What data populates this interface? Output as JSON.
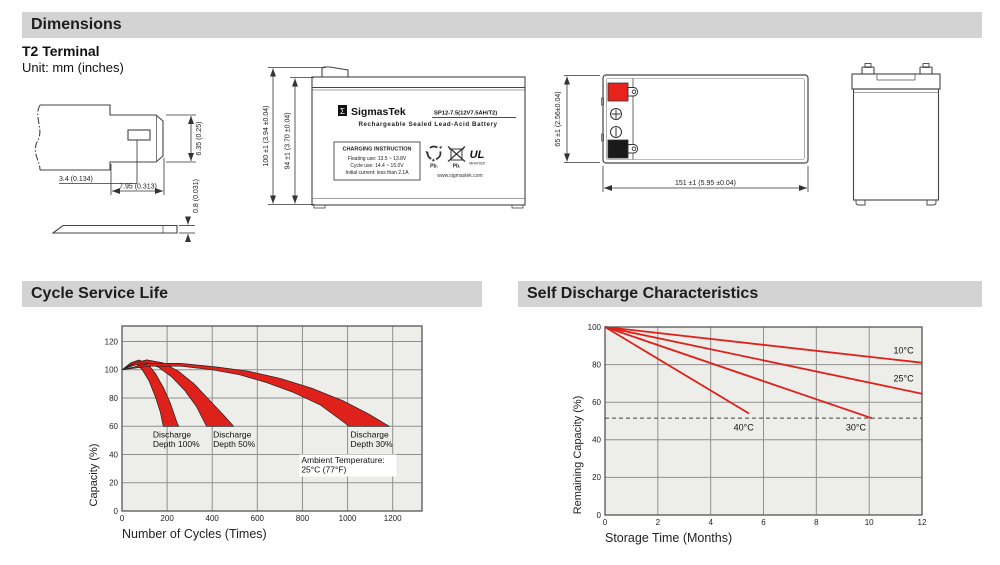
{
  "page": {
    "dimensions_title": "Dimensions",
    "terminal_type": "T2 Terminal",
    "unit_note": "Unit: mm (inches)",
    "cycle_title": "Cycle Service Life",
    "discharge_title": "Self Discharge Characteristics"
  },
  "drawings": {
    "terminal_detail": {
      "dim_height": "6.35 (0.25)",
      "dim_hole": "3.4 (0.134)",
      "dim_width": "7.95 (0.313)",
      "dim_thickness": "0.8 (0.031)"
    },
    "front_view": {
      "dim_height_total": "100 ±1 (3.94 ±0.04)",
      "dim_height_case": "94 ±1 (3.70 ±0.04)",
      "label": {
        "logo_glyph": "Σ",
        "brand": "SigmasTek",
        "model": "SP12-7.5(12V7.5AH/T2)",
        "subtitle": "Rechargeable Sealed Lead-Acid Battery",
        "charging_title": "CHARGING INSTRUCTION",
        "charging_line1": "Floating use: 13.5 ~ 13.8V",
        "charging_line2": "Cycle use: 14.4 ~ 15.0V",
        "charging_line3": "Initial current: less than 2.1A",
        "pb_recycle": "Pb.",
        "pb_bin": "Pb.",
        "ul_mark": "UL",
        "ul_code": "MH47929",
        "website": "www.sigmastek.com"
      }
    },
    "top_view": {
      "dim_depth": "65 ±1 (2.56±0.04)",
      "dim_width": "151 ±1 (5.95 ±0.04)",
      "positive_color": "#e8231c",
      "negative_color": "#1a1a1a"
    }
  },
  "chart_data": [
    {
      "type": "area",
      "title": "Cycle Service Life",
      "xlabel": "Number of Cycles (Times)",
      "ylabel": "Capacity (%)",
      "xlim": [
        0,
        1330
      ],
      "ylim": [
        0,
        131
      ],
      "xticks": [
        0,
        200,
        400,
        600,
        800,
        1000,
        1200
      ],
      "yticks": [
        0,
        20,
        40,
        60,
        80,
        100,
        120
      ],
      "grid": true,
      "legend_position": "none",
      "band_color": "#de211a",
      "series": [
        {
          "name": "Discharge Depth 100%",
          "upper": [
            [
              0,
              100
            ],
            [
              40,
              105
            ],
            [
              75,
              107
            ],
            [
              115,
              104
            ],
            [
              150,
              97
            ],
            [
              185,
              87
            ],
            [
              215,
              76
            ],
            [
              245,
              62
            ],
            [
              252,
              60
            ]
          ],
          "lower": [
            [
              0,
              100
            ],
            [
              30,
              103
            ],
            [
              60,
              104.5
            ],
            [
              90,
              100
            ],
            [
              120,
              92
            ],
            [
              150,
              80
            ],
            [
              170,
              70
            ],
            [
              183,
              60
            ]
          ]
        },
        {
          "name": "Discharge Depth 50%",
          "upper": [
            [
              0,
              100
            ],
            [
              60,
              105
            ],
            [
              110,
              107
            ],
            [
              180,
              105
            ],
            [
              250,
              99
            ],
            [
              320,
              90
            ],
            [
              390,
              78
            ],
            [
              450,
              68
            ],
            [
              495,
              60
            ]
          ],
          "lower": [
            [
              0,
              100
            ],
            [
              50,
              103
            ],
            [
              100,
              105
            ],
            [
              160,
              102
            ],
            [
              220,
              95
            ],
            [
              280,
              85
            ],
            [
              330,
              74
            ],
            [
              365,
              63
            ],
            [
              375,
              60
            ]
          ]
        },
        {
          "name": "Discharge Depth 30%",
          "upper": [
            [
              0,
              100
            ],
            [
              120,
              104.5
            ],
            [
              260,
              104.5
            ],
            [
              420,
              102
            ],
            [
              560,
              99
            ],
            [
              700,
              94
            ],
            [
              840,
              87
            ],
            [
              980,
              78
            ],
            [
              1090,
              69
            ],
            [
              1185,
              60
            ]
          ],
          "lower": [
            [
              0,
              100
            ],
            [
              120,
              102.5
            ],
            [
              260,
              102.5
            ],
            [
              400,
              100
            ],
            [
              520,
              96.5
            ],
            [
              640,
              91
            ],
            [
              760,
              84
            ],
            [
              880,
              75
            ],
            [
              990,
              62
            ],
            [
              1005,
              60
            ]
          ]
        }
      ],
      "annotations": [
        {
          "lines": [
            "Discharge",
            "Depth 100%"
          ],
          "x": 137,
          "y": 52,
          "anchor": "start",
          "bg": false
        },
        {
          "lines": [
            "Discharge",
            "Depth 50%"
          ],
          "x": 404,
          "y": 52,
          "anchor": "start",
          "bg": false
        },
        {
          "lines": [
            "Discharge",
            "Depth 30%"
          ],
          "x": 1013,
          "y": 52,
          "anchor": "start",
          "bg": false
        },
        {
          "lines": [
            "Ambient Temperature:",
            "25°C (77°F)"
          ],
          "x": 795,
          "y": 34,
          "anchor": "start",
          "bg": true
        }
      ]
    },
    {
      "type": "line",
      "title": "Self Discharge Characteristics",
      "xlabel": "Storage Time (Months)",
      "ylabel": "Remaining Capacity (%)",
      "xlim": [
        0,
        12
      ],
      "ylim": [
        0,
        100
      ],
      "xticks": [
        0,
        2,
        4,
        6,
        8,
        10,
        12
      ],
      "yticks": [
        0,
        20,
        40,
        60,
        80,
        100
      ],
      "grid": true,
      "legend_position": "inline-labels",
      "line_color": "#de211a",
      "dashed_line_y": 51.5,
      "series": [
        {
          "name": "10°C",
          "points": [
            [
              0,
              100
            ],
            [
              12,
              81
            ]
          ],
          "label_x": 11.3,
          "label_y": 86
        },
        {
          "name": "25°C",
          "points": [
            [
              0,
              100
            ],
            [
              12,
              64.5
            ]
          ],
          "label_x": 11.3,
          "label_y": 71
        },
        {
          "name": "30°C",
          "points": [
            [
              0,
              100
            ],
            [
              10.1,
              51.5
            ]
          ],
          "label_x": 9.5,
          "label_y": 45
        },
        {
          "name": "40°C",
          "points": [
            [
              0,
              100
            ],
            [
              5.45,
              54
            ]
          ],
          "label_x": 5.25,
          "label_y": 45
        }
      ]
    }
  ]
}
